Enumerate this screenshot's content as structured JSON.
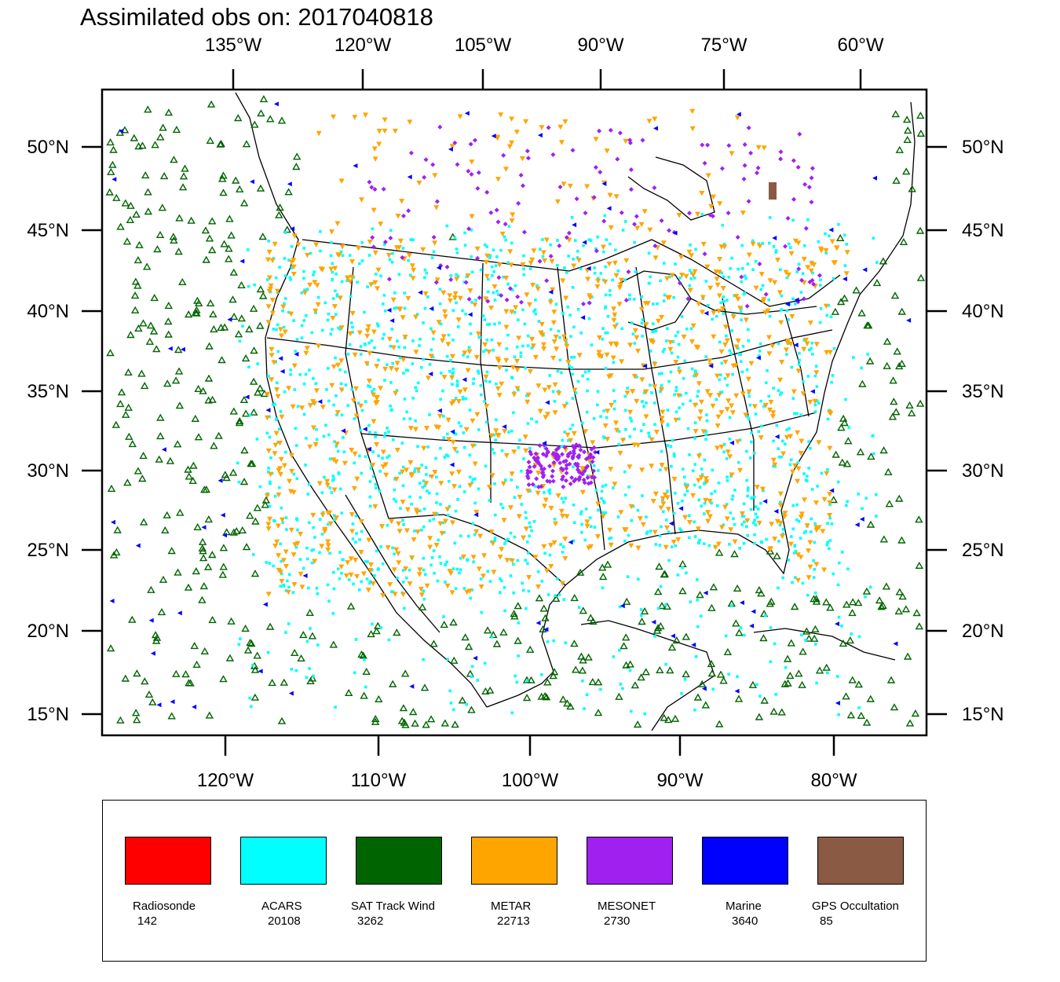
{
  "title": "Assimilated obs on: 2017040818",
  "map": {
    "projection": "lambert-conformal",
    "outer_frame_ticks": {
      "top": [
        {
          "label": "135°W",
          "lon": -135
        },
        {
          "label": "120°W",
          "lon": -120
        },
        {
          "label": "105°W",
          "lon": -105
        },
        {
          "label": "90°W",
          "lon": -90
        },
        {
          "label": "75°W",
          "lon": -75
        },
        {
          "label": "60°W",
          "lon": -60
        }
      ],
      "bottom": [
        {
          "label": "120°W",
          "lon": -120
        },
        {
          "label": "110°W",
          "lon": -110
        },
        {
          "label": "100°W",
          "lon": -100
        },
        {
          "label": "90°W",
          "lon": -90
        },
        {
          "label": "80°W",
          "lon": -80
        }
      ],
      "left": [
        {
          "label": "50°N",
          "lat": 50
        },
        {
          "label": "45°N",
          "lat": 45
        },
        {
          "label": "40°N",
          "lat": 40
        },
        {
          "label": "35°N",
          "lat": 35
        },
        {
          "label": "30°N",
          "lat": 30
        },
        {
          "label": "25°N",
          "lat": 25
        },
        {
          "label": "20°N",
          "lat": 20
        },
        {
          "label": "15°N",
          "lat": 15
        }
      ],
      "right": [
        {
          "label": "50°N",
          "lat": 50
        },
        {
          "label": "45°N",
          "lat": 45
        },
        {
          "label": "40°N",
          "lat": 40
        },
        {
          "label": "35°N",
          "lat": 35
        },
        {
          "label": "30°N",
          "lat": 30
        },
        {
          "label": "25°N",
          "lat": 25
        },
        {
          "label": "20°N",
          "lat": 20
        },
        {
          "label": "15°N",
          "lat": 15
        }
      ]
    }
  },
  "legend": {
    "items": [
      {
        "name": "Radiosonde",
        "count": "142",
        "color": "#ff0000"
      },
      {
        "name": "ACARS",
        "count": "20108",
        "color": "#00ffff"
      },
      {
        "name": "SAT Track Wind",
        "count": "3262",
        "color": "#006400"
      },
      {
        "name": "METAR",
        "count": "22713",
        "color": "#ffa500"
      },
      {
        "name": "MESONET",
        "count": "2730",
        "color": "#a020f0"
      },
      {
        "name": "Marine",
        "count": "3640",
        "color": "#0000ff"
      },
      {
        "name": "GPS Occultation",
        "count": "85",
        "color": "#8b5a44"
      }
    ]
  }
}
